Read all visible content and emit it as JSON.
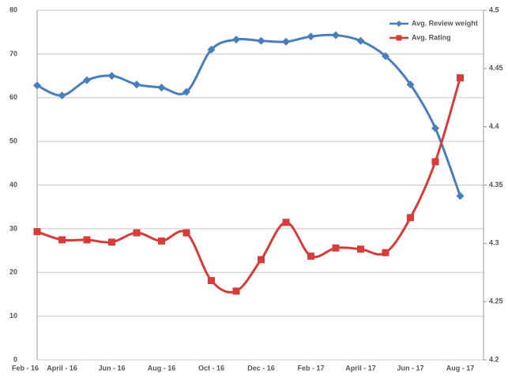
{
  "chart_data": {
    "type": "line",
    "categories": [
      "Feb - 16",
      null,
      "April - 16",
      null,
      "Jun - 16",
      null,
      "Aug - 16",
      null,
      "Oct - 16",
      null,
      "Dec - 16",
      null,
      "Feb - 17",
      null,
      "April - 17",
      null,
      "Jun - 17",
      null,
      "Aug - 17"
    ],
    "series": [
      {
        "name": "Avg. Review weight",
        "color": "#4a7ebb",
        "marker": "diamond",
        "values": [
          null,
          62.8,
          60.5,
          64,
          65,
          63,
          62.3,
          61.3,
          71,
          73.3,
          73,
          72.8,
          74,
          74.3,
          73,
          69.5,
          63,
          53,
          37.5
        ]
      },
      {
        "name": "Avg. Rating",
        "color": "#d63d3a",
        "marker": "square",
        "axis": "y2",
        "values": [
          null,
          4.31,
          4.303,
          4.303,
          4.301,
          4.309,
          4.302,
          4.309,
          4.268,
          4.259,
          4.286,
          4.318,
          4.289,
          4.296,
          4.295,
          4.292,
          4.322,
          4.37,
          4.442
        ]
      }
    ],
    "ylim": [
      0,
      80
    ],
    "yticks": [
      0,
      10,
      20,
      30,
      40,
      50,
      60,
      70,
      80
    ],
    "y2lim": [
      4.2,
      4.5
    ],
    "y2ticks": [
      4.2,
      4.25,
      4.3,
      4.35,
      4.4,
      4.45,
      4.5
    ],
    "grid": true,
    "legend": "top-right",
    "smooth": true
  }
}
